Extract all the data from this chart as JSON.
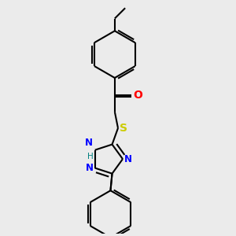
{
  "bg_color": "#ebebeb",
  "line_color": "#000000",
  "bond_width": 1.5,
  "atom_colors": {
    "O": "#ff0000",
    "N": "#0000ff",
    "S": "#cccc00",
    "C": "#000000",
    "H": "#008080"
  },
  "font_size": 8.5,
  "figsize": [
    3.0,
    3.0
  ],
  "dpi": 100
}
